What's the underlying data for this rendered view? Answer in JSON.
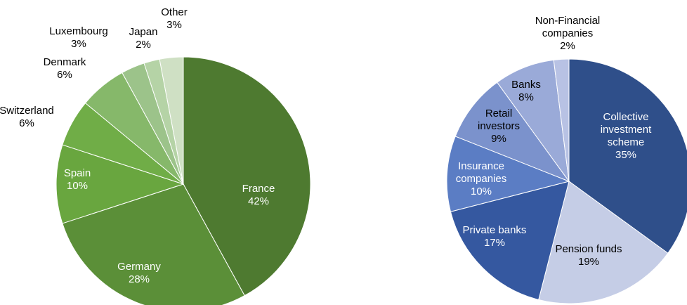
{
  "chart_data": [
    {
      "type": "pie",
      "categories": [
        "France",
        "Germany",
        "Spain",
        "Switzerland",
        "Denmark",
        "Luxembourg",
        "Japan",
        "Other"
      ],
      "values": [
        42,
        28,
        10,
        6,
        6,
        3,
        2,
        3
      ],
      "value_labels": [
        "42%",
        "28%",
        "10%",
        "6%",
        "6%",
        "3%",
        "2%",
        "3%"
      ],
      "colors": [
        "#4e7a30",
        "#5b8f38",
        "#69a63f",
        "#70ad47",
        "#86b86a",
        "#9cc38a",
        "#b5d3a6",
        "#cfe0c4"
      ]
    },
    {
      "type": "pie",
      "categories": [
        "Collective investment scheme",
        "Pension funds",
        "Private banks",
        "Insurance companies",
        "Retail investors",
        "Banks",
        "Non-Financial companies"
      ],
      "values": [
        35,
        19,
        17,
        10,
        9,
        8,
        2
      ],
      "value_labels": [
        "35%",
        "19%",
        "17%",
        "10%",
        "9%",
        "8%",
        "2%"
      ],
      "colors": [
        "#2f4f8a",
        "#c5cde6",
        "#3558a0",
        "#5b7dc4",
        "#7b92cc",
        "#9aaad8",
        "#b8c2e4"
      ]
    }
  ]
}
